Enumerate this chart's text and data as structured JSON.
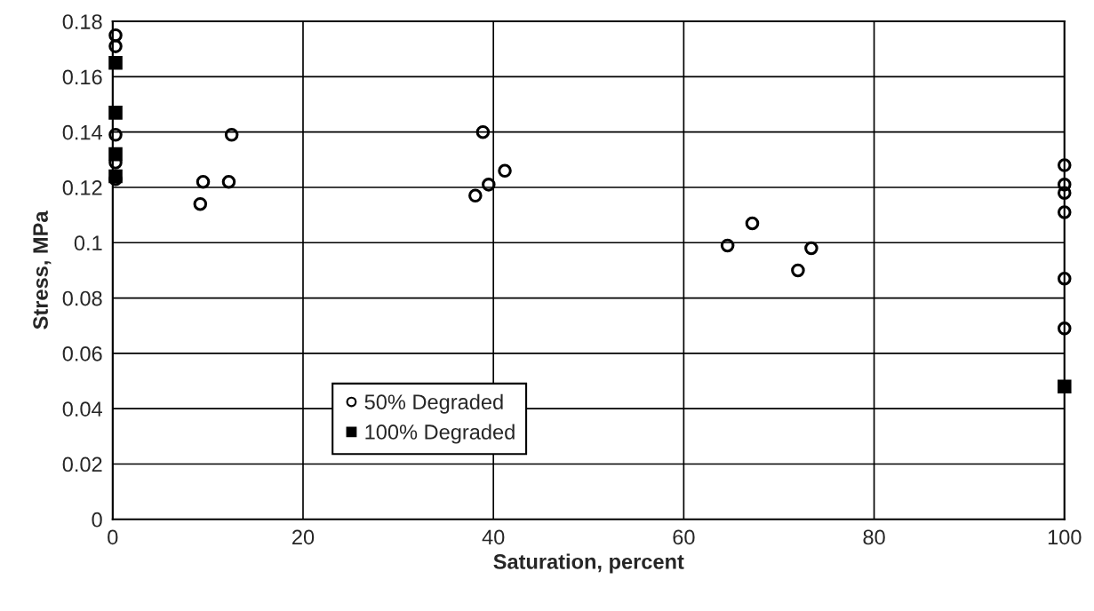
{
  "chart_data": {
    "type": "scatter",
    "xlabel": "Saturation, percent",
    "ylabel": "Stress, MPa",
    "xlim": [
      0,
      100
    ],
    "xticks": [
      0,
      20,
      40,
      60,
      80,
      100
    ],
    "ylim": [
      0,
      0.18
    ],
    "yticks": [
      0,
      0.02,
      0.04,
      0.06,
      0.08,
      0.1,
      0.12,
      0.14,
      0.16,
      0.18
    ],
    "grid": true,
    "legend": "lower left",
    "series": [
      {
        "name": "50% Degraded",
        "color": "#000000",
        "marker": "circle",
        "x": [
          0.3,
          0.3,
          0.3,
          0.3,
          0.3,
          9.2,
          9.5,
          12.2,
          12.5,
          38.1,
          38.9,
          39.5,
          41.2,
          64.6,
          67.2,
          72.0,
          73.4,
          100,
          100,
          100,
          100,
          100,
          100
        ],
        "values": [
          0.175,
          0.171,
          0.139,
          0.129,
          0.123,
          0.114,
          0.122,
          0.122,
          0.139,
          0.117,
          0.14,
          0.121,
          0.126,
          0.099,
          0.107,
          0.09,
          0.098,
          0.128,
          0.121,
          0.118,
          0.111,
          0.087,
          0.069
        ]
      },
      {
        "name": "100% Degraded",
        "color": "#000000",
        "marker": "square",
        "x": [
          0.3,
          0.3,
          0.3,
          0.3,
          100
        ],
        "values": [
          0.165,
          0.147,
          0.132,
          0.124,
          0.048
        ]
      }
    ]
  }
}
